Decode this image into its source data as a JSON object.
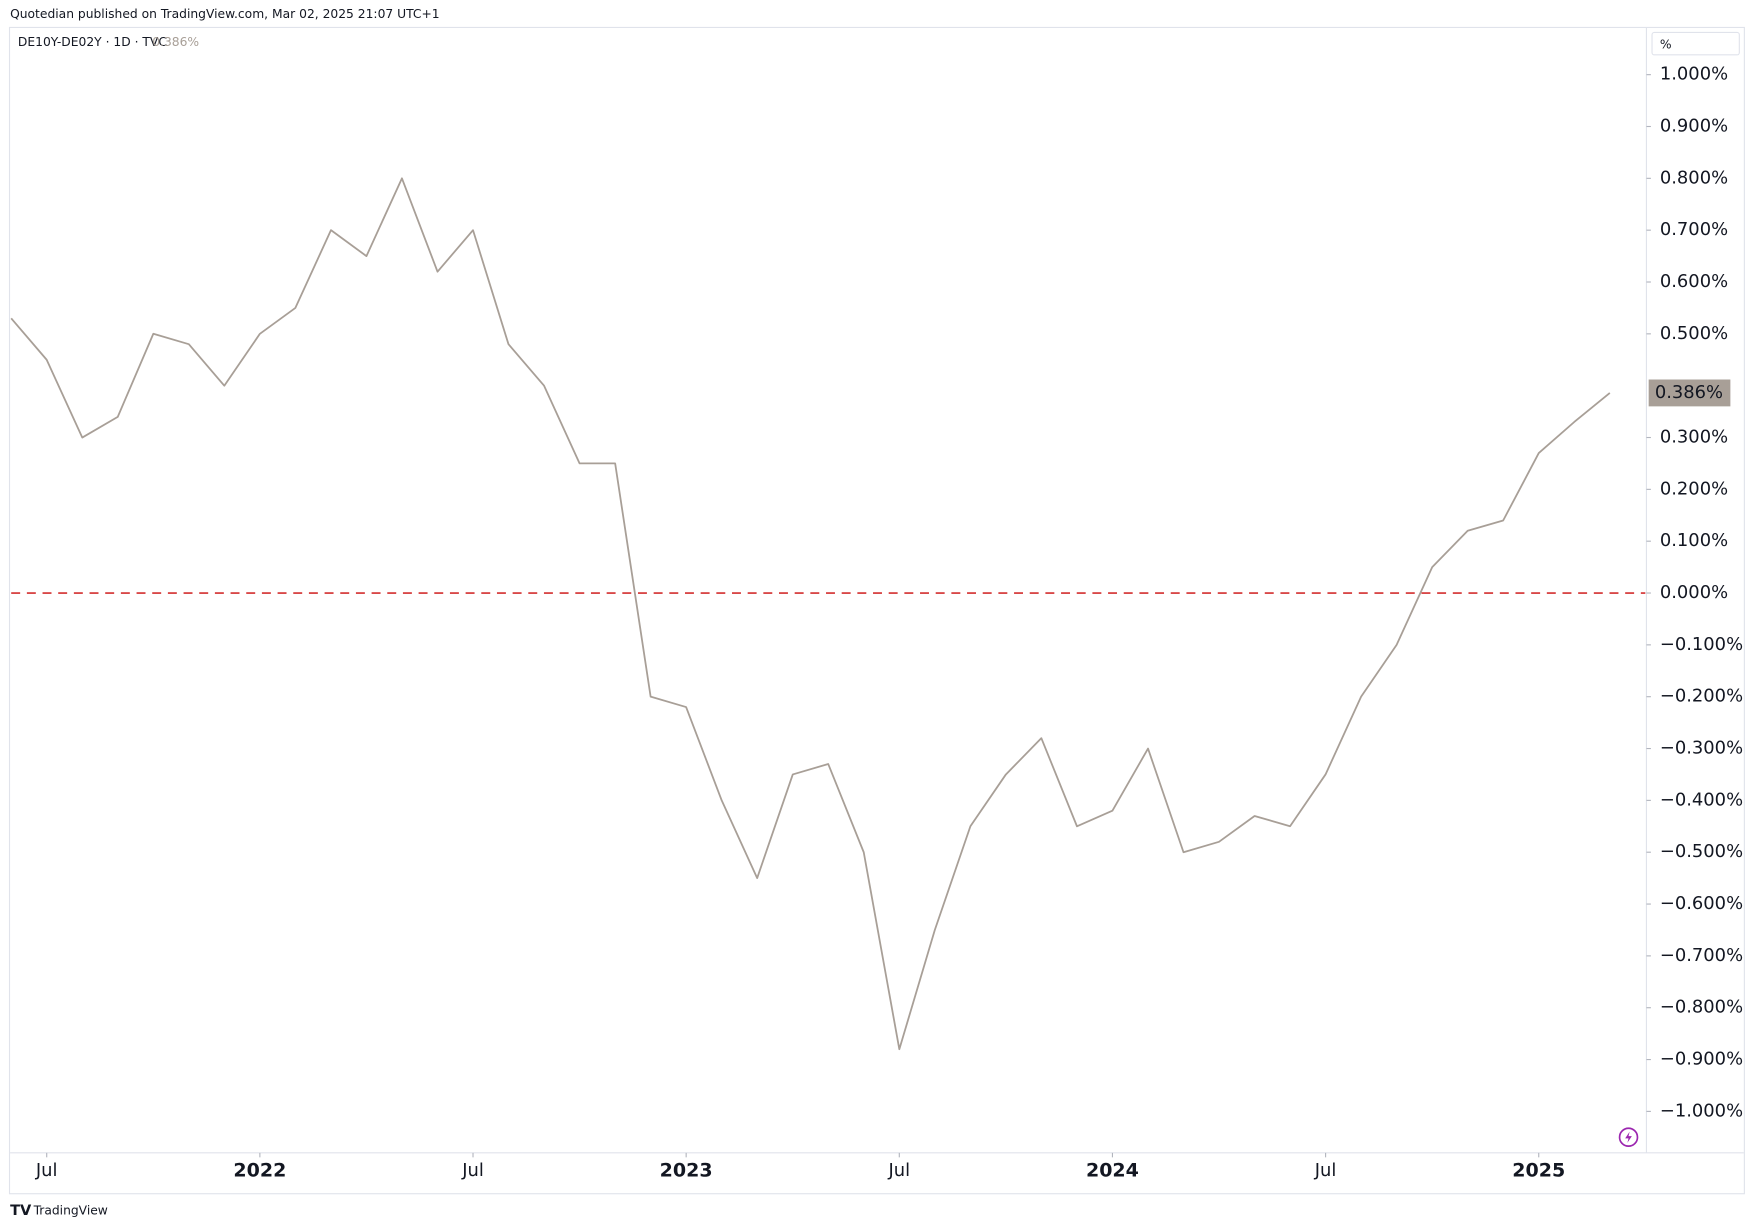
{
  "header": {
    "title": "Quotedian published on TradingView.com, Mar 02, 2025 21:07 UTC+1",
    "footer": "TradingView"
  },
  "chart_data": {
    "type": "line",
    "symbol": "DE10Y-DE02Y · 1D · TVC",
    "unit": "%",
    "x": [
      "2021-06",
      "2021-07",
      "2021-08",
      "2021-09",
      "2021-10",
      "2021-11",
      "2021-12",
      "2022-01",
      "2022-02",
      "2022-03",
      "2022-04",
      "2022-05",
      "2022-06",
      "2022-07",
      "2022-08",
      "2022-09",
      "2022-10",
      "2022-11",
      "2022-12",
      "2023-01",
      "2023-02",
      "2023-03",
      "2023-04",
      "2023-05",
      "2023-06",
      "2023-07",
      "2023-08",
      "2023-09",
      "2023-10",
      "2023-11",
      "2023-12",
      "2024-01",
      "2024-02",
      "2024-03",
      "2024-04",
      "2024-05",
      "2024-06",
      "2024-07",
      "2024-08",
      "2024-09",
      "2024-10",
      "2024-11",
      "2024-12",
      "2025-01",
      "2025-02",
      "2025-03"
    ],
    "series": [
      {
        "name": "DE10Y-DE02Y",
        "color": "#a89f97",
        "values": [
          0.53,
          0.45,
          0.3,
          0.34,
          0.5,
          0.48,
          0.4,
          0.5,
          0.55,
          0.7,
          0.65,
          0.8,
          0.62,
          0.7,
          0.48,
          0.4,
          0.25,
          0.25,
          -0.2,
          -0.22,
          -0.4,
          -0.55,
          -0.35,
          -0.33,
          -0.5,
          -0.88,
          -0.65,
          -0.45,
          -0.35,
          -0.28,
          -0.45,
          -0.42,
          -0.3,
          -0.5,
          -0.48,
          -0.43,
          -0.45,
          -0.35,
          -0.2,
          -0.1,
          0.05,
          0.12,
          0.14,
          0.27,
          0.33,
          0.386
        ],
        "last_value_label": "0.386%"
      }
    ],
    "xlim": [
      "2021-06",
      "2025-04"
    ],
    "xticks": [
      {
        "value": "2021-07",
        "label": "Jul"
      },
      {
        "value": "2022-01",
        "label": "2022"
      },
      {
        "value": "2022-07",
        "label": "Jul"
      },
      {
        "value": "2023-01",
        "label": "2023"
      },
      {
        "value": "2023-07",
        "label": "Jul"
      },
      {
        "value": "2024-01",
        "label": "2024"
      },
      {
        "value": "2024-07",
        "label": "Jul"
      },
      {
        "value": "2025-01",
        "label": "2025"
      }
    ],
    "ylim": [
      -1.08,
      1.09
    ],
    "yticks": [
      {
        "value": 1.0,
        "label": "1.000%"
      },
      {
        "value": 0.9,
        "label": "0.900%"
      },
      {
        "value": 0.8,
        "label": "0.800%"
      },
      {
        "value": 0.7,
        "label": "0.700%"
      },
      {
        "value": 0.6,
        "label": "0.600%"
      },
      {
        "value": 0.5,
        "label": "0.500%"
      },
      {
        "value": 0.3,
        "label": "0.300%"
      },
      {
        "value": 0.2,
        "label": "0.200%"
      },
      {
        "value": 0.1,
        "label": "0.100%"
      },
      {
        "value": 0,
        "label": "0.000%"
      },
      {
        "value": -0.1,
        "label": "−0.100%"
      },
      {
        "value": -0.2,
        "label": "−0.200%"
      },
      {
        "value": -0.3,
        "label": "−0.300%"
      },
      {
        "value": -0.4,
        "label": "−0.400%"
      },
      {
        "value": -0.5,
        "label": "−0.500%"
      },
      {
        "value": -0.6,
        "label": "−0.600%"
      },
      {
        "value": -0.7,
        "label": "−0.700%"
      },
      {
        "value": -0.8,
        "label": "−0.800%"
      },
      {
        "value": -0.9,
        "label": "−0.900%"
      },
      {
        "value": -1.0,
        "label": "−1.000%"
      }
    ],
    "hlines": [
      {
        "value": 0,
        "color": "#d32f2f"
      }
    ]
  }
}
